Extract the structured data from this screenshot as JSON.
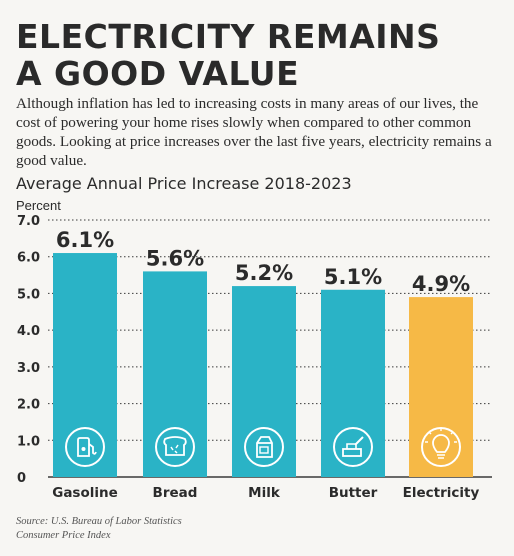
{
  "headline": [
    "ELECTRICITY REMAINS",
    "A GOOD VALUE"
  ],
  "intro": "Although inflation has led to increasing costs in many areas of our lives, the cost of powering your home rises slowly when compared to other common goods. Looking at price increases over the last five years, electricity remains a good value.",
  "source": [
    "Source: U.S. Bureau of Labor Statistics",
    "Consumer Price Index"
  ],
  "colors": {
    "bar": "#2ab3c6",
    "highlight": "#f6b946",
    "text": "#2b2b2b",
    "gridline": "#3a3a3a"
  },
  "chart_data": {
    "type": "bar",
    "title": "Average Annual Price Increase 2018-2023",
    "ylabel": "Percent",
    "xlabel": "",
    "ylim": [
      0,
      7
    ],
    "yticks": [
      "0",
      "1.0",
      "2.0",
      "3.0",
      "4.0",
      "5.0",
      "6.0",
      "7.0"
    ],
    "grid": "dotted horizontal",
    "categories": [
      "Gasoline",
      "Bread",
      "Milk",
      "Butter",
      "Electricity"
    ],
    "values": [
      6.1,
      5.6,
      5.2,
      5.1,
      4.9
    ],
    "data_labels": [
      "6.1%",
      "5.6%",
      "5.2%",
      "5.1%",
      "4.9%"
    ],
    "icons": [
      "gas-pump-icon",
      "bread-icon",
      "milk-carton-icon",
      "butter-icon",
      "light-bulb-icon"
    ],
    "highlighted_category": "Electricity"
  }
}
